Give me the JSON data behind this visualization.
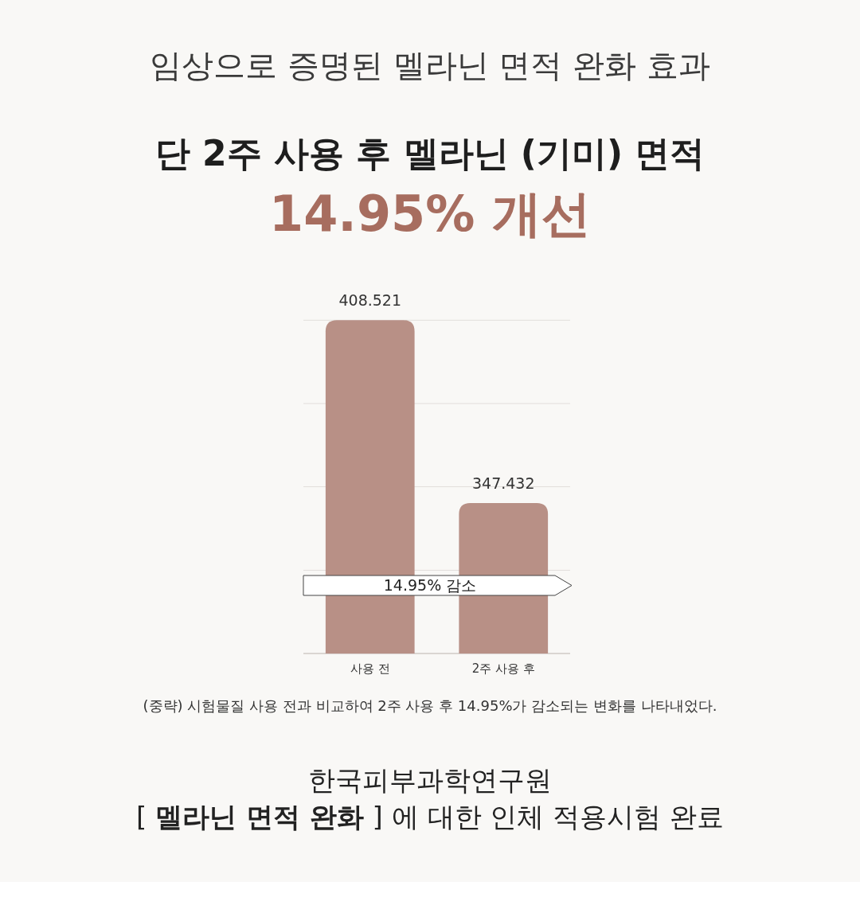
{
  "chart_data": {
    "type": "bar",
    "title": "임상으로 증명된 멜라닌 면적 완화 효과",
    "subtitle": "단 2주 사용 후 멜라닌 (기미) 면적",
    "categories": [
      "사용 전",
      "2주 사용 후"
    ],
    "values": [
      408.521,
      347.432
    ],
    "color": "#b89086",
    "data_labels": true,
    "ylim": [
      297.2,
      408.6
    ],
    "yticks": [
      {
        "value": 325.0,
        "label": null
      },
      {
        "value": 352.9,
        "label": null
      },
      {
        "value": 380.7,
        "label": null
      },
      {
        "value": 408.52,
        "label": null
      }
    ],
    "grid": "y",
    "annotations": [
      "14.95% 개선",
      "14.95% 감소",
      "(중략) 시험물질 사용 전과 비교하여 2주 사용 후 14.95%가 감소되는 변화를 나타내었다.",
      "한국피부과학연구원",
      "[ **멜라닌 면적 완화** ] 에 대한 인체 적용시험 완료"
    ]
  }
}
